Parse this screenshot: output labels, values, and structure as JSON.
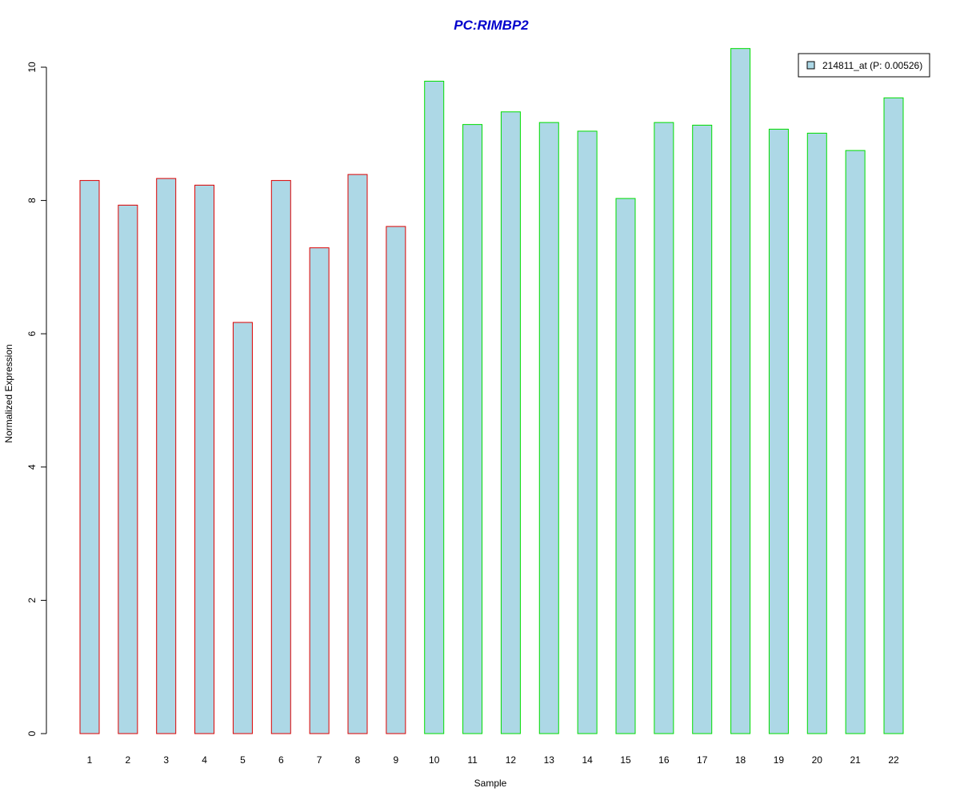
{
  "chart_data": {
    "type": "bar",
    "title": "PC:RIMBP2",
    "xlabel": "Sample",
    "ylabel": "Normalized Expression",
    "categories": [
      "1",
      "2",
      "3",
      "4",
      "5",
      "6",
      "7",
      "8",
      "9",
      "10",
      "11",
      "12",
      "13",
      "14",
      "15",
      "16",
      "17",
      "18",
      "19",
      "20",
      "21",
      "22"
    ],
    "values": [
      8.3,
      7.93,
      8.33,
      8.23,
      6.17,
      8.3,
      7.29,
      8.39,
      7.61,
      9.79,
      9.14,
      9.33,
      9.17,
      9.04,
      8.03,
      9.17,
      9.13,
      10.28,
      9.07,
      9.01,
      8.75,
      9.54
    ],
    "groups": [
      "red",
      "red",
      "red",
      "red",
      "red",
      "red",
      "red",
      "red",
      "red",
      "green",
      "green",
      "green",
      "green",
      "green",
      "green",
      "green",
      "green",
      "green",
      "green",
      "green",
      "green",
      "green"
    ],
    "ylim": [
      0,
      10.3
    ],
    "yticks": [
      0,
      2,
      4,
      6,
      8,
      10
    ],
    "grid": false,
    "legend": {
      "position": "top-right",
      "entries": [
        {
          "label": "214811_at (P: 0.00526)",
          "color": "#add8e6"
        }
      ]
    },
    "colors": {
      "bar_fill": "#add8e6",
      "outline_red": "#dd0000",
      "outline_green": "#00dd00",
      "title": "#0000cc"
    }
  }
}
